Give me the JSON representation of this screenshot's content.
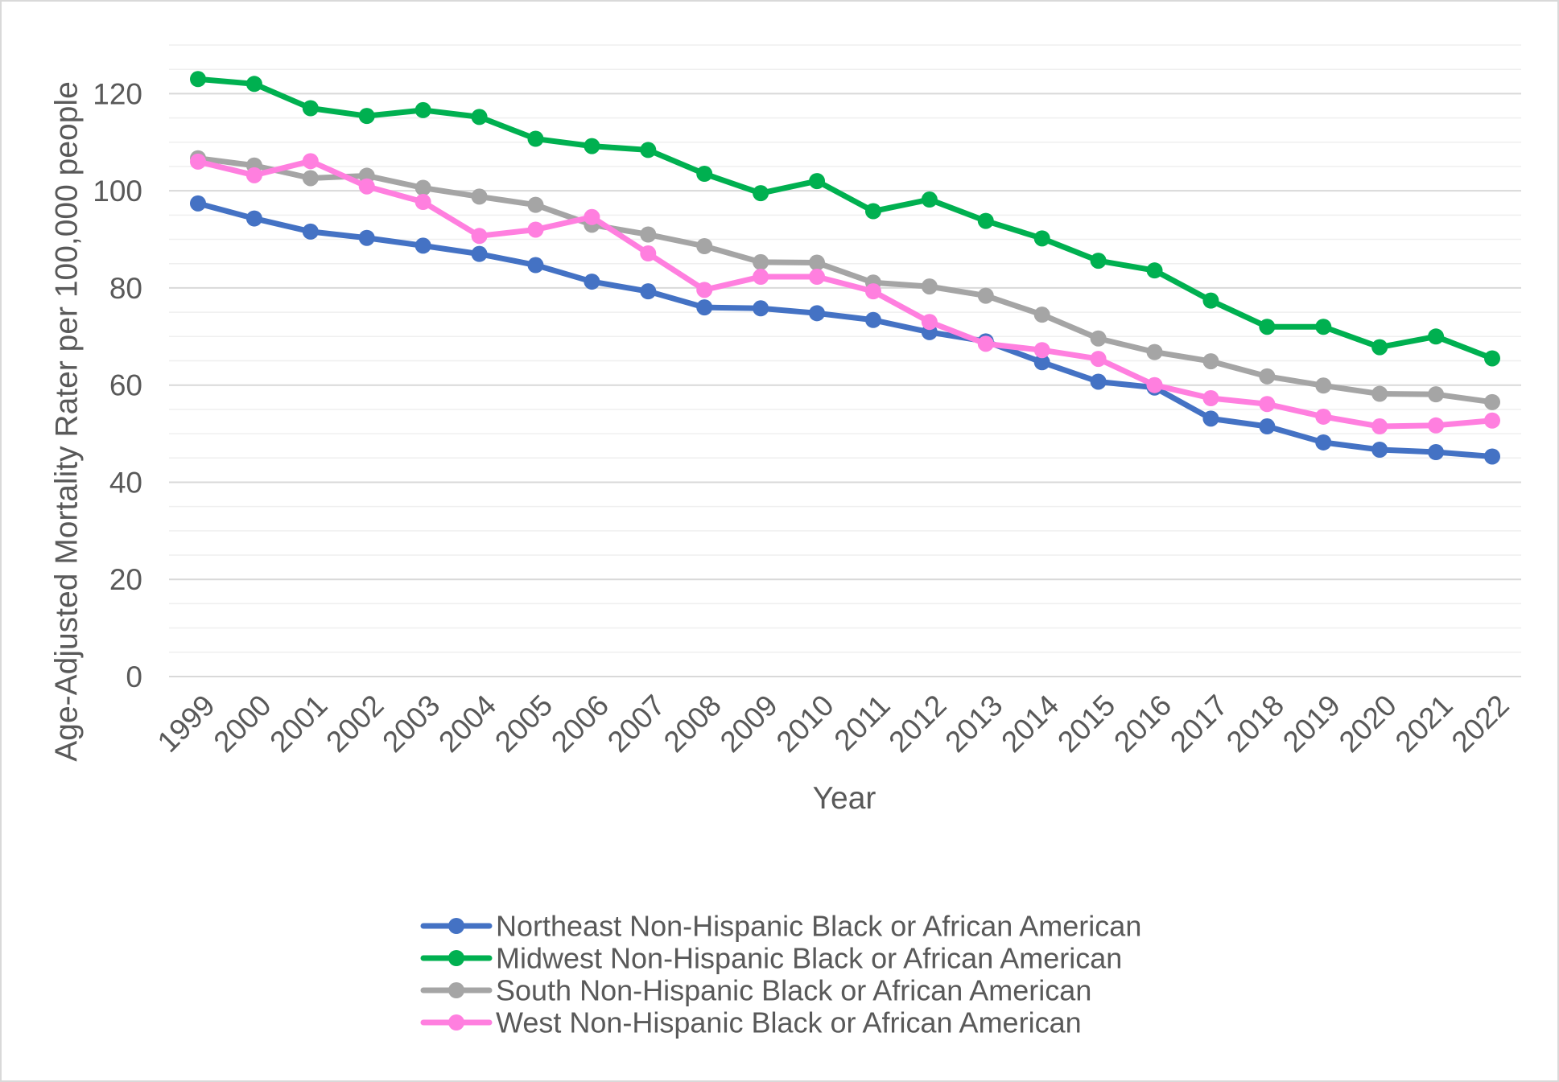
{
  "chart_data": {
    "type": "line",
    "title": "",
    "xlabel": "Year",
    "ylabel": "Age-Adjusted Mortality Rater per 100,000 people",
    "ylim": [
      0,
      130
    ],
    "yticks": [
      0,
      20,
      40,
      60,
      80,
      100,
      120
    ],
    "grid": true,
    "legend_position": "bottom",
    "categories": [
      "1999",
      "2000",
      "2001",
      "2002",
      "2003",
      "2004",
      "2005",
      "2006",
      "2007",
      "2008",
      "2009",
      "2010",
      "2011",
      "2012",
      "2013",
      "2014",
      "2015",
      "2016",
      "2017",
      "2018",
      "2019",
      "2020",
      "2021",
      "2022"
    ],
    "series": [
      {
        "name": "Northeast Non-Hispanic Black or African American",
        "color": "#4472c4",
        "values": [
          97.4,
          94.3,
          91.6,
          90.3,
          88.7,
          87.0,
          84.7,
          81.3,
          79.3,
          76.0,
          75.8,
          74.8,
          73.4,
          70.9,
          69.0,
          64.7,
          60.7,
          59.5,
          53.1,
          51.5,
          48.2,
          46.7,
          46.2,
          45.3
        ]
      },
      {
        "name": "Midwest Non-Hispanic Black or African American",
        "color": "#00b050",
        "values": [
          123.0,
          122.0,
          117.0,
          115.4,
          116.6,
          115.2,
          110.7,
          109.2,
          108.4,
          103.5,
          99.5,
          102.0,
          95.8,
          98.2,
          93.8,
          90.2,
          85.6,
          83.6,
          77.4,
          72.0,
          72.0,
          67.8,
          70.0,
          65.5
        ]
      },
      {
        "name": "South Non-Hispanic Black or African American",
        "color": "#a5a5a5",
        "values": [
          106.7,
          105.2,
          102.6,
          103.1,
          100.6,
          98.8,
          97.1,
          93.0,
          91.0,
          88.6,
          85.3,
          85.2,
          81.1,
          80.3,
          78.4,
          74.5,
          69.6,
          66.8,
          64.9,
          61.8,
          59.9,
          58.2,
          58.1,
          56.5
        ]
      },
      {
        "name": "West Non-Hispanic Black or African American",
        "color": "#ff7fdf",
        "values": [
          106.0,
          103.2,
          106.1,
          100.9,
          97.7,
          90.7,
          92.0,
          94.6,
          87.1,
          79.6,
          82.3,
          82.3,
          79.3,
          73.0,
          68.5,
          67.2,
          65.4,
          60.0,
          57.3,
          56.1,
          53.5,
          51.5,
          51.7,
          52.7
        ]
      }
    ]
  }
}
